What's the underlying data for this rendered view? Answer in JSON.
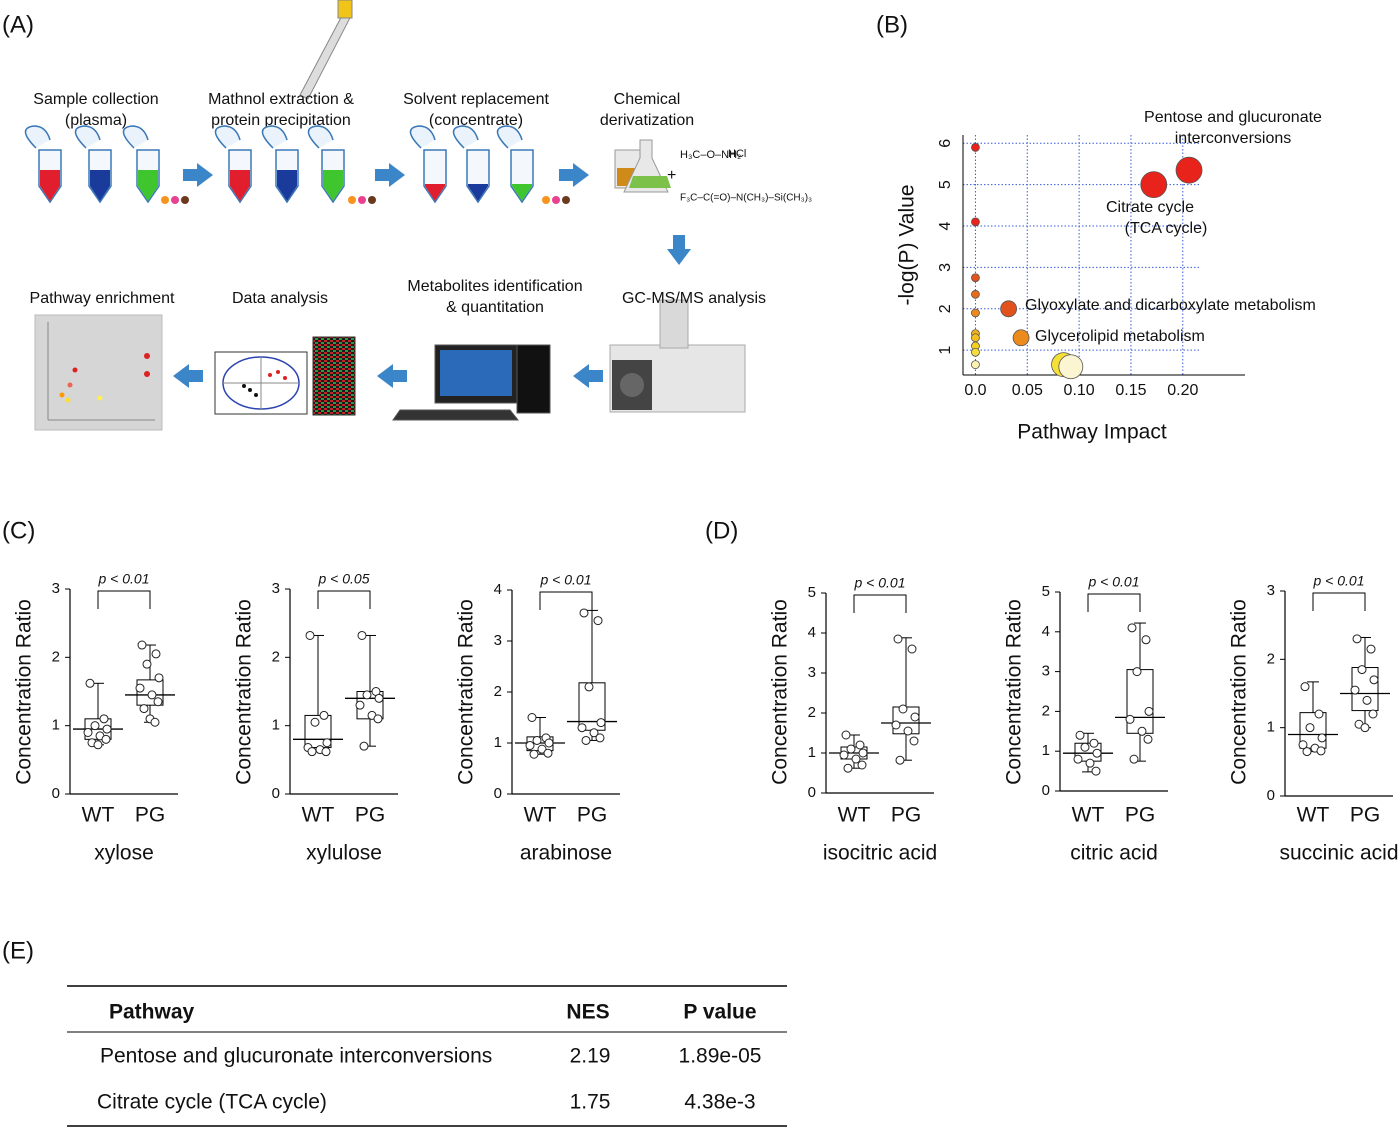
{
  "panel_labels": [
    "(A)",
    "(B)",
    "(C)",
    "(D)",
    "(E)"
  ],
  "workflow": {
    "steps": [
      {
        "lines": [
          "Sample collection",
          "(plasma)"
        ]
      },
      {
        "lines": [
          "Mathnol extraction &",
          "protein precipitation"
        ]
      },
      {
        "lines": [
          "Solvent replacement",
          "(concentrate)"
        ]
      },
      {
        "lines": [
          "Chemical",
          "derivatization"
        ]
      },
      {
        "lines": [
          "GC-MS/MS analysis"
        ]
      },
      {
        "lines": [
          "Metabolites identification",
          "& quantitation"
        ]
      },
      {
        "lines": [
          "Data analysis"
        ]
      },
      {
        "lines": [
          "Pathway enrichment"
        ]
      }
    ],
    "reagents": [
      "H₃C–O–NH₂",
      "HCl",
      "F₃C–C(=O)–N(CH₃)–Si(CH₃)₃"
    ]
  },
  "chart_data": [
    {
      "type": "scatter",
      "x_label": "Pathway Impact",
      "y_label": "-log(P) Value",
      "xlim": [
        -0.012,
        0.26
      ],
      "ylim": [
        0.4,
        6.2
      ],
      "xticks": [
        {
          "value": 0,
          "label": "0.0"
        },
        0.05,
        {
          "value": 0.1,
          "label": "0.10"
        },
        0.15,
        {
          "value": 0.2,
          "label": "0.20"
        }
      ],
      "yticks": [
        1,
        2,
        3,
        4,
        5,
        6
      ],
      "grid": true,
      "points": {
        "x": [
          0,
          0,
          0,
          0,
          0,
          0,
          0,
          0,
          0,
          0,
          0.032,
          0.044,
          0.172,
          0.206,
          0.085,
          0.092
        ],
        "y": [
          5.9,
          4.1,
          2.75,
          2.35,
          1.9,
          1.4,
          1.3,
          1.1,
          0.95,
          0.65,
          2.0,
          1.3,
          5.0,
          5.35,
          0.65,
          0.6
        ],
        "sizes": [
          4,
          4,
          4,
          4,
          4,
          4,
          4,
          4,
          4,
          4,
          8,
          8,
          13,
          13,
          12,
          12
        ],
        "colors": [
          "#e8231c",
          "#e8231c",
          "#e2521c",
          "#e66a1c",
          "#ec8a1c",
          "#f2b21c",
          "#f4c01f",
          "#f5d020",
          "#f6dd3c",
          "#fbf2b0",
          "#e2521c",
          "#ec8a1c",
          "#e8231c",
          "#e8231c",
          "#f5e03a",
          "#fbf5d2"
        ]
      },
      "annotations": [
        "Pentose and glucuronate",
        "interconversions",
        "Citrate cycle",
        "(TCA cycle)",
        "Glyoxylate and dicarboxylate metabolism",
        "Glycerolipid metabolism"
      ]
    },
    {
      "type": "box",
      "title": "xylose",
      "y_label": "Concentration Ratio",
      "annotation": "p < 0.01",
      "categories": [
        "WT",
        "PG"
      ],
      "ylim": [
        0,
        3
      ],
      "yticks": [
        0,
        1,
        2,
        3
      ],
      "groups": [
        {
          "min": 0.72,
          "q1": 0.8,
          "median": 0.95,
          "q3": 1.1,
          "max": 1.62,
          "points": [
            1.62,
            1.1,
            1.0,
            0.95,
            0.9,
            0.85,
            0.8,
            0.75,
            0.72
          ]
        },
        {
          "min": 1.05,
          "q1": 1.3,
          "median": 1.45,
          "q3": 1.67,
          "max": 2.18,
          "points": [
            2.18,
            2.05,
            1.9,
            1.7,
            1.55,
            1.45,
            1.35,
            1.25,
            1.1,
            1.05
          ]
        }
      ]
    },
    {
      "type": "box",
      "title": "xylulose",
      "y_label": "Concentration Ratio",
      "annotation": "p < 0.05",
      "categories": [
        "WT",
        "PG"
      ],
      "ylim": [
        0,
        3
      ],
      "yticks": [
        0,
        1,
        2,
        3
      ],
      "groups": [
        {
          "min": 0.62,
          "q1": 0.68,
          "median": 0.8,
          "q3": 1.15,
          "max": 2.32,
          "points": [
            2.32,
            1.15,
            1.05,
            0.75,
            0.68,
            0.65,
            0.62,
            0.62
          ]
        },
        {
          "min": 0.7,
          "q1": 1.1,
          "median": 1.4,
          "q3": 1.5,
          "max": 2.32,
          "points": [
            2.32,
            1.5,
            1.45,
            1.4,
            1.3,
            1.15,
            1.1,
            0.7
          ]
        }
      ]
    },
    {
      "type": "box",
      "title": "arabinose",
      "y_label": "Concentration Ratio",
      "annotation": "p < 0.01",
      "categories": [
        "WT",
        "PG"
      ],
      "ylim": [
        0,
        4
      ],
      "yticks": [
        0,
        1,
        2,
        3,
        4
      ],
      "groups": [
        {
          "min": 0.78,
          "q1": 0.85,
          "median": 1.0,
          "q3": 1.12,
          "max": 1.5,
          "points": [
            1.5,
            1.1,
            1.05,
            1.0,
            0.95,
            0.88,
            0.8,
            0.78
          ]
        },
        {
          "min": 1.05,
          "q1": 1.25,
          "median": 1.42,
          "q3": 2.18,
          "max": 3.6,
          "points": [
            3.55,
            3.4,
            2.1,
            1.4,
            1.3,
            1.2,
            1.1,
            1.05
          ]
        }
      ]
    },
    {
      "type": "box",
      "title": "isocitric acid",
      "y_label": "Concentration Ratio",
      "annotation": "p < 0.01",
      "categories": [
        "WT",
        "PG"
      ],
      "ylim": [
        0,
        5
      ],
      "yticks": [
        0,
        1,
        2,
        3,
        4,
        5
      ],
      "groups": [
        {
          "min": 0.62,
          "q1": 0.85,
          "median": 1.0,
          "q3": 1.15,
          "max": 1.45,
          "points": [
            1.45,
            1.2,
            1.1,
            1.0,
            0.95,
            0.85,
            0.7,
            0.62
          ]
        },
        {
          "min": 0.82,
          "q1": 1.48,
          "median": 1.75,
          "q3": 2.15,
          "max": 3.88,
          "points": [
            3.85,
            3.6,
            2.1,
            1.9,
            1.7,
            1.55,
            1.3,
            0.82
          ]
        }
      ]
    },
    {
      "type": "box",
      "title": "citric acid",
      "y_label": "Concentration Ratio",
      "annotation": "p < 0.01",
      "categories": [
        "WT",
        "PG"
      ],
      "ylim": [
        0,
        5
      ],
      "yticks": [
        0,
        1,
        2,
        3,
        4,
        5
      ],
      "groups": [
        {
          "min": 0.48,
          "q1": 0.75,
          "median": 0.95,
          "q3": 1.2,
          "max": 1.45,
          "points": [
            1.4,
            1.2,
            1.1,
            0.95,
            0.8,
            0.7,
            0.5
          ]
        },
        {
          "min": 0.75,
          "q1": 1.45,
          "median": 1.85,
          "q3": 3.05,
          "max": 4.22,
          "points": [
            4.1,
            3.8,
            3.0,
            2.0,
            1.8,
            1.5,
            1.3,
            0.8
          ]
        }
      ]
    },
    {
      "type": "box",
      "title": "succinic acid",
      "y_label": "Concentration Ratio",
      "annotation": "p < 0.01",
      "categories": [
        "WT",
        "PG"
      ],
      "ylim": [
        0,
        3
      ],
      "yticks": [
        0,
        1,
        2,
        3
      ],
      "groups": [
        {
          "min": 0.65,
          "q1": 0.7,
          "median": 0.9,
          "q3": 1.22,
          "max": 1.67,
          "points": [
            1.6,
            1.2,
            1.0,
            0.85,
            0.75,
            0.7,
            0.66,
            0.65
          ]
        },
        {
          "min": 1.0,
          "q1": 1.25,
          "median": 1.5,
          "q3": 1.88,
          "max": 2.32,
          "points": [
            2.3,
            2.15,
            1.85,
            1.7,
            1.55,
            1.4,
            1.2,
            1.05,
            1.0
          ]
        }
      ]
    }
  ],
  "table": {
    "header": [
      "Pathway",
      "NES",
      "P value"
    ],
    "rows": [
      [
        "Pentose and glucuronate interconversions",
        "2.19",
        "1.89e-05"
      ],
      [
        "Citrate cycle (TCA cycle)",
        "1.75",
        "4.38e-3"
      ]
    ]
  }
}
